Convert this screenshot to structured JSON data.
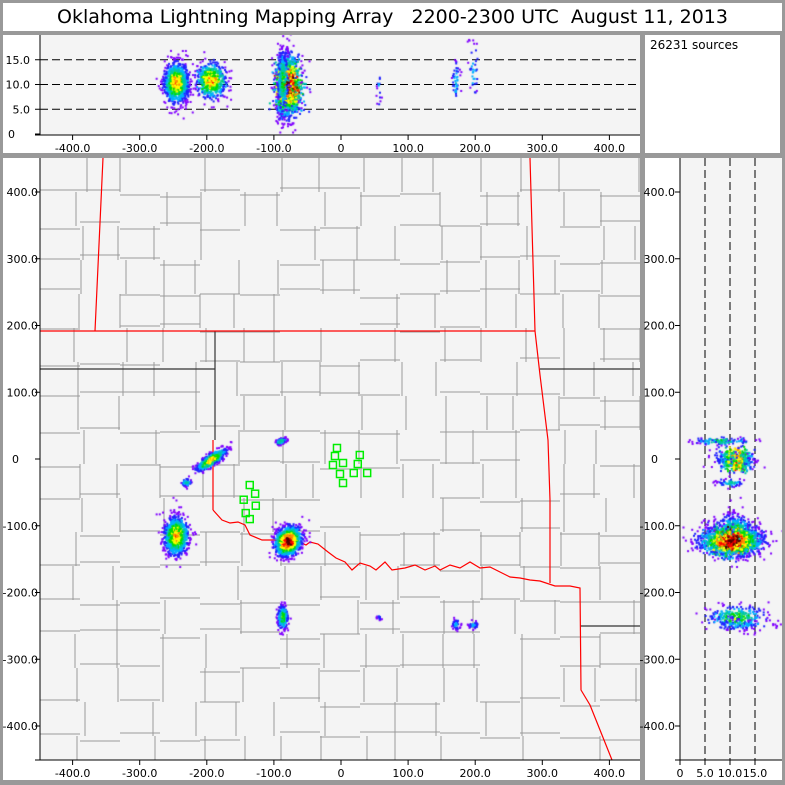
{
  "title": "Oklahoma Lightning Mapping Array   2200-2300 UTC  August 11, 2013",
  "source_count": "26231 sources",
  "axes": {
    "x_ticks": [
      {
        "v": -400,
        "label": "-400.0"
      },
      {
        "v": -300,
        "label": "-300.0"
      },
      {
        "v": -200,
        "label": "-200.0"
      },
      {
        "v": -100,
        "label": "-100.0"
      },
      {
        "v": 0,
        "label": "0"
      },
      {
        "v": 100,
        "label": "100.0"
      },
      {
        "v": 200,
        "label": "200.0"
      },
      {
        "v": 300,
        "label": "300.0"
      },
      {
        "v": 400,
        "label": "400.0"
      }
    ],
    "y_ticks": [
      {
        "v": 400,
        "label": "400.0"
      },
      {
        "v": 300,
        "label": "300.0"
      },
      {
        "v": 200,
        "label": "200.0"
      },
      {
        "v": 100,
        "label": "100.0"
      },
      {
        "v": 0,
        "label": "0"
      },
      {
        "v": -100,
        "label": "-100.0"
      },
      {
        "v": -200,
        "label": "-200.0"
      },
      {
        "v": -300,
        "label": "-300.0"
      },
      {
        "v": -400,
        "label": "-400.0"
      }
    ],
    "alt_ticks": [
      {
        "v": 0,
        "label": "0"
      },
      {
        "v": 5,
        "label": "5.0"
      },
      {
        "v": 10,
        "label": "10.0"
      },
      {
        "v": 15,
        "label": "15.0"
      }
    ]
  },
  "colors": {
    "background": "#999999",
    "plot_bg": "#f4f4f4",
    "state_border": "#ff0000",
    "county_border": "#999999",
    "station": "#00ee00",
    "density_colormap": [
      "#8000ff",
      "#2020ff",
      "#00b0ff",
      "#00c8a0",
      "#00dd00",
      "#ffff00",
      "#ff9000",
      "#ff0000",
      "#500000"
    ]
  },
  "stations": [
    [
      -6,
      16.5
    ],
    [
      -9,
      4.5
    ],
    [
      -12,
      -9
    ],
    [
      3,
      -6
    ],
    [
      -1.5,
      -22.5
    ],
    [
      28,
      6
    ],
    [
      25,
      -7.5
    ],
    [
      19,
      -21
    ],
    [
      39,
      -21
    ],
    [
      3,
      -36
    ],
    [
      -136,
      -39
    ],
    [
      -128,
      -52
    ],
    [
      -145,
      -61
    ],
    [
      -127,
      -70
    ],
    [
      -142,
      -81
    ],
    [
      -136,
      -90
    ]
  ],
  "source_clusters": [
    {
      "x": -195,
      "y": 0,
      "z": 11,
      "sx": 13,
      "sy": 4,
      "sz": 1.8,
      "rot": 35,
      "n": 600,
      "peak": 0.75
    },
    {
      "x": -232,
      "y": -34,
      "z": 10,
      "sx": 4,
      "sy": 3,
      "sz": 1.5,
      "rot": 20,
      "n": 60,
      "peak": 0.4
    },
    {
      "x": -247,
      "y": -114,
      "z": 10.5,
      "sx": 9,
      "sy": 14,
      "sz": 2,
      "rot": 0,
      "n": 1000,
      "peak": 0.75
    },
    {
      "x": -91,
      "y": 28,
      "z": 8,
      "sx": 4,
      "sy": 2,
      "sz": 3,
      "rot": 20,
      "n": 120,
      "peak": 0.5
    },
    {
      "x": -80,
      "y": -122,
      "z": 10,
      "sx": 9,
      "sy": 11,
      "sz": 3,
      "rot": -30,
      "n": 1500,
      "peak": 1.0
    },
    {
      "x": -88,
      "y": -236,
      "z": 11,
      "sx": 4,
      "sy": 9,
      "sz": 3,
      "rot": 0,
      "n": 250,
      "peak": 0.55
    },
    {
      "x": 55,
      "y": -236,
      "z": 9,
      "sx": 1.5,
      "sy": 2,
      "sz": 2,
      "rot": 0,
      "n": 15,
      "peak": 0.3
    },
    {
      "x": 170,
      "y": -247,
      "z": 11,
      "sx": 3,
      "sy": 4,
      "sz": 2.2,
      "rot": 0,
      "n": 45,
      "peak": 0.35
    },
    {
      "x": 196,
      "y": -247,
      "z": 13,
      "sx": 4,
      "sy": 3,
      "sz": 3,
      "rot": 0,
      "n": 35,
      "peak": 0.3
    }
  ]
}
